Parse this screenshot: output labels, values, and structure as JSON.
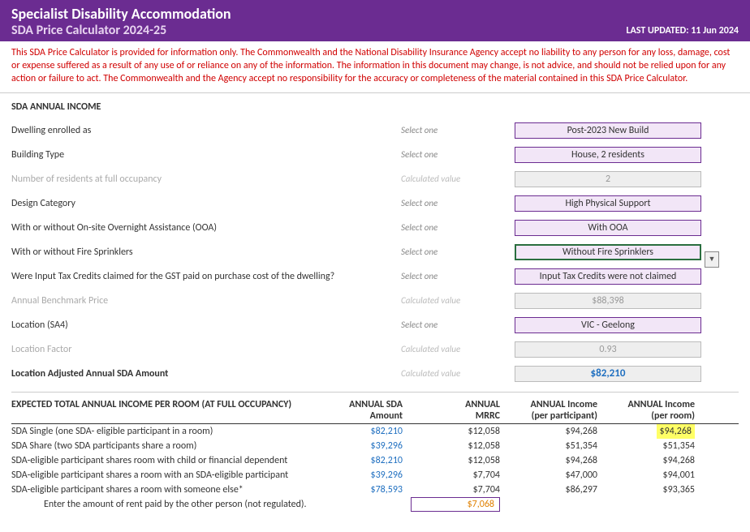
{
  "header": {
    "title1": "Specialist Disability Accommodation",
    "title2": "SDA Price Calculator 2024-25",
    "updated_label": "LAST UPDATED:",
    "updated_date": "11 Jun 2024"
  },
  "disclaimer": "This SDA Price Calculator is provided for information only. The Commonwealth and the National Disability Insurance Agency accept no liability to any person for any loss, damage, cost or expense suffered as a result of any use of or reliance on any of the information. The information in this document may change, is not advice, and should not be relied upon for any action or failure to act. The Commonwealth and the Agency accept no responsibility for the accuracy or completeness of the material contained in this SDA Price Calculator.",
  "section1_title": "SDA ANNUAL INCOME",
  "hints": {
    "select": "Select one",
    "calc": "Calculated value"
  },
  "fields": {
    "dwelling_label": "Dwelling enrolled as",
    "dwelling_value": "Post-2023 New Build",
    "building_label": "Building Type",
    "building_value": "House, 2 residents",
    "residents_label": "Number of residents at full occupancy",
    "residents_value": "2",
    "design_label": "Design Category",
    "design_value": "High Physical Support",
    "ooa_label": "With or without On-site Overnight Assistance (OOA)",
    "ooa_value": "With OOA",
    "fire_label": "With or without Fire Sprinklers",
    "fire_value": "Without Fire Sprinklers",
    "tax_label": "Were Input Tax Credits claimed for the GST paid on purchase cost of the dwelling?",
    "tax_value": "Input Tax Credits were not claimed",
    "bench_label": "Annual Benchmark Price",
    "bench_value": "$88,398",
    "location_label": "Location (SA4)",
    "location_value": "VIC - Geelong",
    "locfactor_label": "Location Factor",
    "locfactor_value": "0.93",
    "adjusted_label": "Location Adjusted Annual SDA Amount",
    "adjusted_value": "$82,210"
  },
  "table": {
    "title": "EXPECTED TOTAL ANNUAL INCOME PER ROOM (AT FULL OCCUPANCY)",
    "headers": {
      "c2a": "ANNUAL SDA",
      "c2b": "Amount",
      "c3a": "ANNUAL",
      "c3b": "MRRC",
      "c4a": "ANNUAL Income",
      "c4b": "(per participant)",
      "c5a": "ANNUAL Income",
      "c5b": "(per room)"
    },
    "rows": [
      {
        "label": "SDA Single (one SDA- eligible participant in a room)",
        "sda": "$82,210",
        "mrrc": "$12,058",
        "perpart": "$94,268",
        "perroom": "$94,268",
        "hl": true
      },
      {
        "label": "SDA Share (two SDA participants share a room)",
        "sda": "$39,296",
        "mrrc": "$12,058",
        "perpart": "$51,354",
        "perroom": "$51,354"
      },
      {
        "label": "SDA-eligible participant shares room with child or financial dependent",
        "sda": "$82,210",
        "mrrc": "$12,058",
        "perpart": "$94,268",
        "perroom": "$94,268"
      },
      {
        "label": "SDA-eligible participant shares a room with an SDA-eligible participant",
        "sda": "$39,296",
        "mrrc": "$7,704",
        "perpart": "$47,000",
        "perroom": "$94,001"
      },
      {
        "label": "SDA-eligible participant shares a room with someone else*",
        "sda": "$78,593",
        "mrrc": "$7,704",
        "perpart": "$86,297",
        "perroom": "$93,365"
      }
    ],
    "rent_label": "Enter the amount of rent paid by the other person (not regulated).",
    "rent_value": "$7,068"
  }
}
